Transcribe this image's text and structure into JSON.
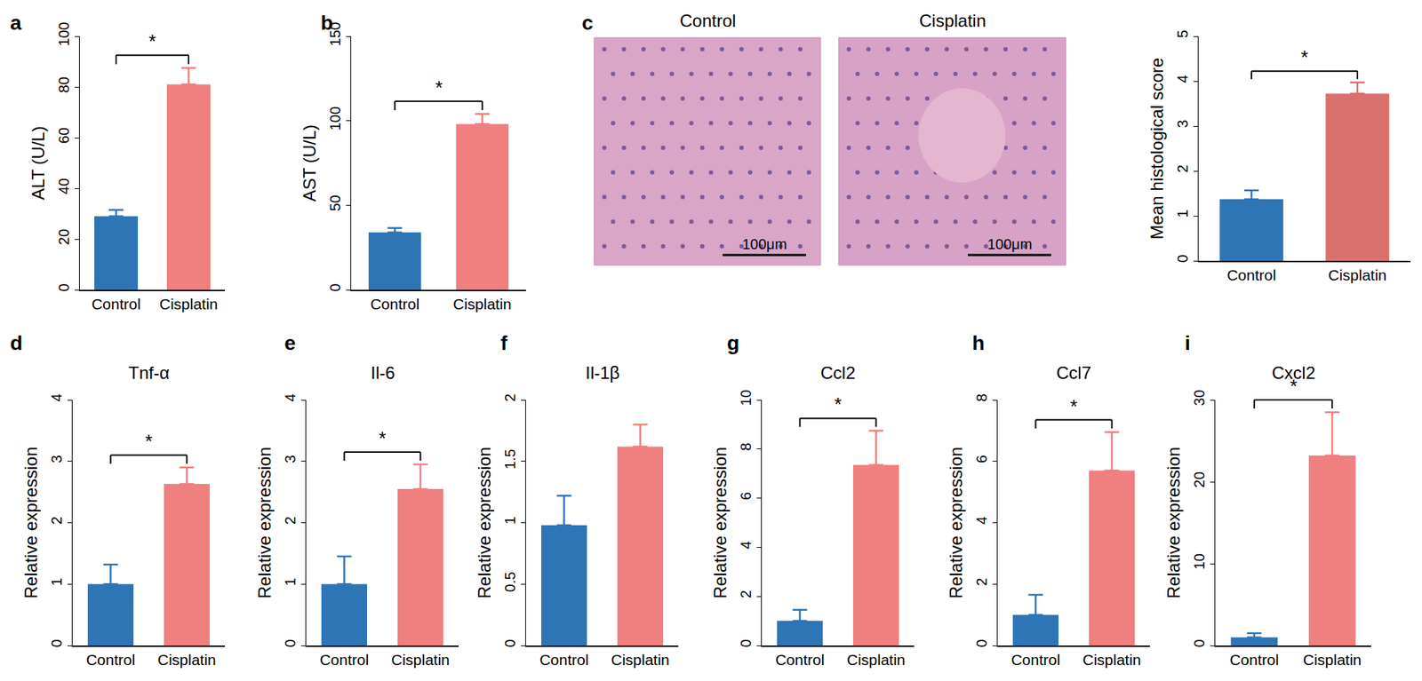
{
  "chart_data": [
    {
      "type": "bar",
      "panel": "a",
      "y_label": "ALT (U/L)",
      "categories": [
        "Control",
        "Cisplatin"
      ],
      "values": [
        29,
        81
      ],
      "errors": [
        2.5,
        6.5
      ],
      "colors": [
        "#2e75b6",
        "#f07f7f"
      ],
      "ylim": [
        0,
        100
      ],
      "yticks": [
        0,
        20,
        40,
        60,
        80,
        100
      ],
      "significance": "*"
    },
    {
      "type": "bar",
      "panel": "b",
      "y_label": "AST (U/L)",
      "categories": [
        "Control",
        "Cisplatin"
      ],
      "values": [
        34,
        98
      ],
      "errors": [
        2.5,
        6
      ],
      "colors": [
        "#2e75b6",
        "#f07f7f"
      ],
      "ylim": [
        0,
        150
      ],
      "yticks": [
        0,
        50,
        100,
        150
      ],
      "significance": "*"
    },
    {
      "type": "bar",
      "y_label": "Mean histological score",
      "categories": [
        "Control",
        "Cisplatin"
      ],
      "values": [
        1.37,
        3.72
      ],
      "errors": [
        0.2,
        0.25
      ],
      "colors": [
        "#2e75b6",
        "#d9706e"
      ],
      "ylim": [
        0,
        5
      ],
      "yticks": [
        0,
        1,
        2,
        3,
        4,
        5
      ],
      "significance": "*"
    },
    {
      "type": "bar",
      "panel": "d",
      "title": "Tnf-α",
      "y_label": "Relative expression",
      "categories": [
        "Control",
        "Cisplatin"
      ],
      "values": [
        1.0,
        2.63
      ],
      "errors": [
        0.32,
        0.27
      ],
      "colors": [
        "#2e75b6",
        "#f07f7f"
      ],
      "ylim": [
        0,
        4
      ],
      "yticks": [
        0,
        1,
        2,
        3,
        4
      ],
      "significance": "*"
    },
    {
      "type": "bar",
      "panel": "e",
      "title": "Il-6",
      "y_label": "Relative expression",
      "categories": [
        "Control",
        "Cisplatin"
      ],
      "values": [
        1.0,
        2.55
      ],
      "errors": [
        0.45,
        0.4
      ],
      "colors": [
        "#2e75b6",
        "#f07f7f"
      ],
      "ylim": [
        0,
        4
      ],
      "yticks": [
        0,
        1,
        2,
        3,
        4
      ],
      "significance": "*"
    },
    {
      "type": "bar",
      "panel": "f",
      "title": "Il-1β",
      "y_label": "Relative expression",
      "categories": [
        "Control",
        "Cisplatin"
      ],
      "values": [
        0.98,
        1.62
      ],
      "errors": [
        0.24,
        0.18
      ],
      "colors": [
        "#2e75b6",
        "#f07f7f"
      ],
      "ylim": [
        0,
        2
      ],
      "yticks": [
        0,
        0.5,
        1,
        1.5,
        2
      ]
    },
    {
      "type": "bar",
      "panel": "g",
      "title": "Ccl2",
      "y_label": "Relative expression",
      "categories": [
        "Control",
        "Cisplatin"
      ],
      "values": [
        1.0,
        7.35
      ],
      "errors": [
        0.45,
        1.4
      ],
      "colors": [
        "#2e75b6",
        "#f07f7f"
      ],
      "ylim": [
        0,
        10
      ],
      "yticks": [
        0,
        2,
        4,
        6,
        8,
        10
      ],
      "significance": "*"
    },
    {
      "type": "bar",
      "panel": "h",
      "title": "Ccl7",
      "y_label": "Relative expression",
      "categories": [
        "Control",
        "Cisplatin"
      ],
      "values": [
        1.0,
        5.7
      ],
      "errors": [
        0.65,
        1.25
      ],
      "colors": [
        "#2e75b6",
        "#f07f7f"
      ],
      "ylim": [
        0,
        8
      ],
      "yticks": [
        0,
        2,
        4,
        6,
        8
      ],
      "significance": "*"
    },
    {
      "type": "bar",
      "panel": "i",
      "title": "Cxcl2",
      "y_label": "Relative expression",
      "categories": [
        "Control",
        "Cisplatin"
      ],
      "values": [
        1.0,
        23.2
      ],
      "errors": [
        0.5,
        5.3
      ],
      "colors": [
        "#2e75b6",
        "#f07f7f"
      ],
      "ylim": [
        0,
        30
      ],
      "yticks": [
        0,
        10,
        20,
        30
      ],
      "significance": "*"
    }
  ],
  "histology": {
    "panel": "c",
    "images": [
      {
        "label": "Control",
        "scale_bar": "100μm"
      },
      {
        "label": "Cisplatin",
        "scale_bar": "100μm"
      }
    ]
  }
}
